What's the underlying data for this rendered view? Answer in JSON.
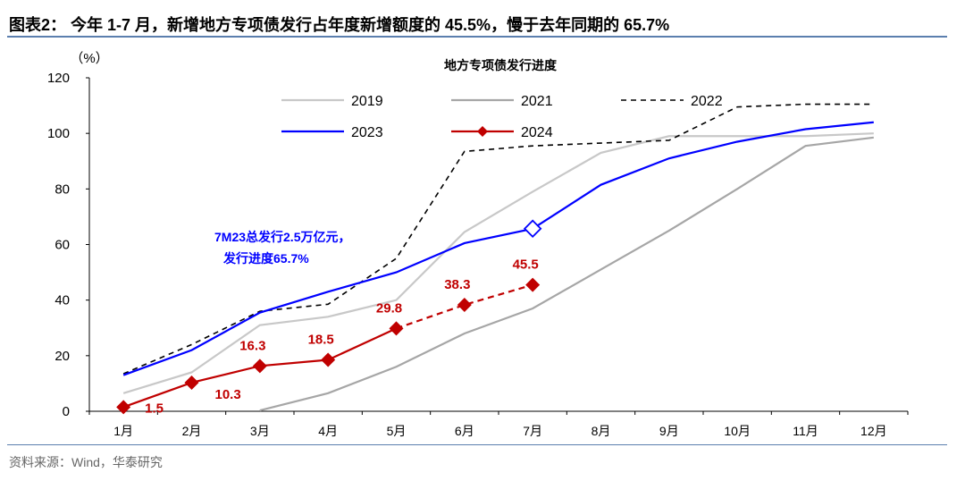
{
  "header": {
    "title": "图表2： 今年 1-7 月，新增地方专项债发行占年度新增额度的 45.5%，慢于去年同期的 65.7%"
  },
  "footer": {
    "source": "资料来源：Wind，华泰研究"
  },
  "chart_data": {
    "type": "line",
    "title": "地方专项债发行进度",
    "ylabel": "（%）",
    "ylim": [
      0,
      120
    ],
    "yticks": [
      0,
      20,
      40,
      60,
      80,
      100,
      120
    ],
    "categories": [
      "1月",
      "2月",
      "3月",
      "4月",
      "5月",
      "6月",
      "7月",
      "8月",
      "9月",
      "10月",
      "11月",
      "12月"
    ],
    "legend_position": "top",
    "grid": false,
    "series": [
      {
        "name": "2019",
        "color": "#c8c8c8",
        "style": "solid",
        "values": [
          6.5,
          14,
          31,
          34,
          40,
          64.5,
          79,
          93,
          99,
          99,
          99,
          100
        ]
      },
      {
        "name": "2021",
        "color": "#a6a6a6",
        "style": "solid",
        "values": [
          null,
          null,
          0.3,
          6.5,
          16,
          28,
          37,
          51,
          65,
          80,
          95.5,
          98.5
        ]
      },
      {
        "name": "2022",
        "color": "#000000",
        "style": "dashed",
        "values": [
          13.5,
          24,
          36,
          38.5,
          55,
          93.5,
          95.5,
          96.5,
          97.5,
          109.5,
          110.5,
          110.5
        ]
      },
      {
        "name": "2023",
        "color": "#0000ff",
        "style": "solid",
        "values": [
          13,
          22,
          35.5,
          43,
          50,
          60.5,
          65.7,
          81.5,
          91,
          97,
          101.5,
          104
        ]
      },
      {
        "name": "2024",
        "color": "#c00000",
        "style": "solid-then-dashed",
        "values": [
          1.5,
          10.3,
          16.3,
          18.5,
          29.8,
          38.3,
          45.5,
          null,
          null,
          null,
          null,
          null
        ],
        "data_labels": [
          "1.5",
          "10.3",
          "16.3",
          "18.5",
          "29.8",
          "38.3",
          "45.5"
        ]
      }
    ],
    "annotations": [
      {
        "text_line1": "7M23总发行2.5万亿元，",
        "text_line2": "发行进度65.7%",
        "color": "#0000ff"
      }
    ]
  }
}
